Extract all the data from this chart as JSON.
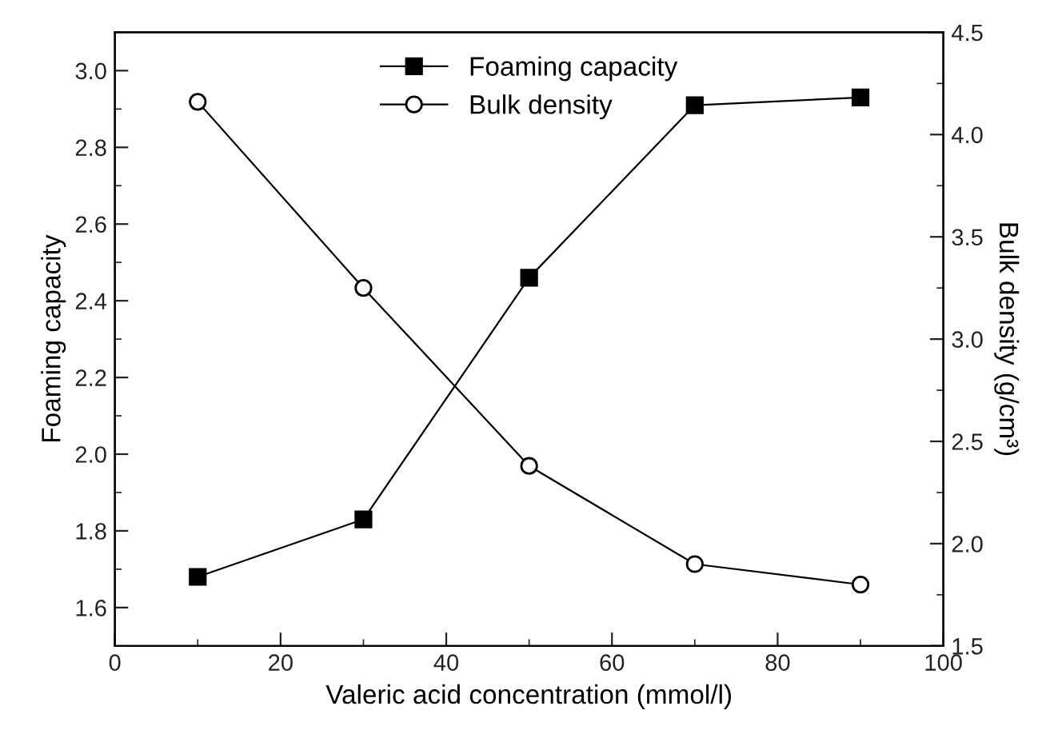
{
  "chart_data": {
    "type": "line",
    "xlabel": "Valeric acid concentration (mmol/l)",
    "ylabel": "Foaming capacity",
    "y2label": "Bulk density (g/cm³)",
    "x": [
      10,
      30,
      50,
      70,
      90
    ],
    "series": [
      {
        "name": "Foaming capacity",
        "color": "#000000",
        "marker": "square",
        "values": [
          1.68,
          1.83,
          2.46,
          2.91,
          2.93
        ]
      },
      {
        "name": "Bulk density",
        "color": "#000000",
        "marker": "circle",
        "axis": "y2",
        "values": [
          4.16,
          3.25,
          2.38,
          1.9,
          1.8
        ]
      }
    ],
    "xlim": [
      0,
      100
    ],
    "xticks": [
      0,
      20,
      40,
      60,
      80,
      100
    ],
    "ylim": [
      1.5,
      3.1
    ],
    "yticks": [
      1.6,
      1.8,
      {
        "value": 2,
        "label": "2.0"
      },
      2.2,
      2.4,
      2.6,
      2.8,
      {
        "value": 3,
        "label": "3.0"
      }
    ],
    "y2lim": [
      1.5,
      4.5
    ],
    "y2ticks": [
      1.5,
      {
        "value": 2,
        "label": "2.0"
      },
      2.5,
      {
        "value": 3,
        "label": "3.0"
      },
      3.5,
      {
        "value": 4,
        "label": "4.0"
      },
      4.5
    ],
    "legend": "top center",
    "grid": false,
    "line_style": "solid"
  }
}
